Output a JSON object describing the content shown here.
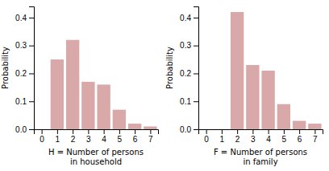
{
  "chart_data": [
    {
      "type": "bar",
      "x": [
        0,
        1,
        2,
        3,
        4,
        5,
        6,
        7
      ],
      "values": [
        0,
        0.25,
        0.32,
        0.17,
        0.16,
        0.07,
        0.02,
        0.01
      ],
      "xlabel": "H = Number of persons\nin household",
      "ylabel": "Probability",
      "xlim": [
        -0.5,
        7.5
      ],
      "ylim": [
        0,
        0.44
      ],
      "xticks": [
        0,
        1,
        2,
        3,
        4,
        5,
        6,
        7
      ],
      "yticks": [
        {
          "value": 0.0,
          "label": "0.0"
        },
        0.1,
        0.2,
        0.3,
        0.4
      ],
      "color": "#d9a8a8",
      "grid": false
    },
    {
      "type": "bar",
      "x": [
        0,
        1,
        2,
        3,
        4,
        5,
        6,
        7
      ],
      "values": [
        0,
        0,
        0.42,
        0.23,
        0.21,
        0.09,
        0.03,
        0.02
      ],
      "xlabel": "F = Number of persons\nin family",
      "ylabel": "Probability",
      "xlim": [
        -0.5,
        7.5
      ],
      "ylim": [
        0,
        0.44
      ],
      "xticks": [
        0,
        1,
        2,
        3,
        4,
        5,
        6,
        7
      ],
      "yticks": [
        {
          "value": 0.0,
          "label": "0.0"
        },
        0.1,
        0.2,
        0.3,
        0.4
      ],
      "color": "#d9a8a8",
      "grid": false
    }
  ]
}
